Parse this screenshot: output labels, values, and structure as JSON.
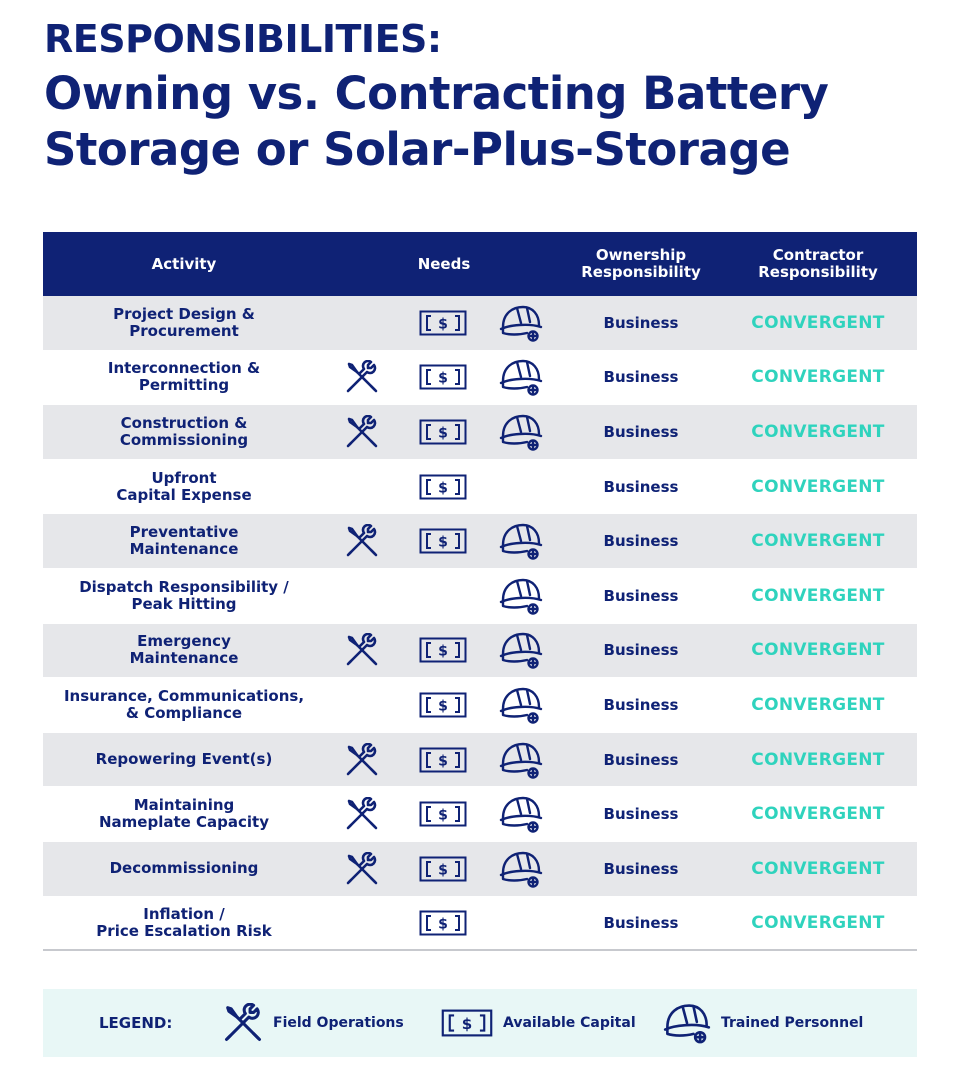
{
  "title": {
    "line1": "RESPONSIBILITIES:",
    "line2": "Owning vs. Contracting Battery",
    "line3": "Storage or Solar-Plus-Storage"
  },
  "headers": {
    "activity": "Activity",
    "needs": "Needs",
    "ownership": "Ownership\nResponsibility",
    "contractor": "Contractor\nResponsibility"
  },
  "rows": [
    {
      "activity": "Project Design &\nProcurement",
      "field_operations": false,
      "available_capital": true,
      "trained_personnel": true,
      "ownership": "Business",
      "contractor": "CONVERGENT"
    },
    {
      "activity": "Interconnection &\nPermitting",
      "field_operations": true,
      "available_capital": true,
      "trained_personnel": true,
      "ownership": "Business",
      "contractor": "CONVERGENT"
    },
    {
      "activity": "Construction &\nCommissioning",
      "field_operations": true,
      "available_capital": true,
      "trained_personnel": true,
      "ownership": "Business",
      "contractor": "CONVERGENT"
    },
    {
      "activity": "Upfront\nCapital Expense",
      "field_operations": false,
      "available_capital": true,
      "trained_personnel": false,
      "ownership": "Business",
      "contractor": "CONVERGENT"
    },
    {
      "activity": "Preventative\nMaintenance",
      "field_operations": true,
      "available_capital": true,
      "trained_personnel": true,
      "ownership": "Business",
      "contractor": "CONVERGENT"
    },
    {
      "activity": "Dispatch Responsibility /\nPeak Hitting",
      "field_operations": false,
      "available_capital": false,
      "trained_personnel": true,
      "ownership": "Business",
      "contractor": "CONVERGENT"
    },
    {
      "activity": "Emergency\nMaintenance",
      "field_operations": true,
      "available_capital": true,
      "trained_personnel": true,
      "ownership": "Business",
      "contractor": "CONVERGENT"
    },
    {
      "activity": "Insurance, Communications,\n& Compliance",
      "field_operations": false,
      "available_capital": true,
      "trained_personnel": true,
      "ownership": "Business",
      "contractor": "CONVERGENT"
    },
    {
      "activity": "Repowering Event(s)",
      "field_operations": true,
      "available_capital": true,
      "trained_personnel": true,
      "ownership": "Business",
      "contractor": "CONVERGENT"
    },
    {
      "activity": "Maintaining\nNameplate Capacity",
      "field_operations": true,
      "available_capital": true,
      "trained_personnel": true,
      "ownership": "Business",
      "contractor": "CONVERGENT"
    },
    {
      "activity": "Decommissioning",
      "field_operations": true,
      "available_capital": true,
      "trained_personnel": true,
      "ownership": "Business",
      "contractor": "CONVERGENT"
    },
    {
      "activity": "Inflation /\nPrice Escalation Risk",
      "field_operations": false,
      "available_capital": true,
      "trained_personnel": false,
      "ownership": "Business",
      "contractor": "CONVERGENT"
    }
  ],
  "legend": {
    "label": "LEGEND:",
    "field_operations": "Field Operations",
    "available_capital": "Available Capital",
    "trained_personnel": "Trained Personnel"
  },
  "colors": {
    "navy": "#0f2275",
    "teal": "#2fd3bd",
    "row_shade": "#e6e7ea",
    "legend_bg": "#e8f7f6"
  },
  "icons": {
    "field_operations": "wrench-screwdriver-icon",
    "available_capital": "cash-bill-icon",
    "trained_personnel": "hard-hat-icon"
  }
}
